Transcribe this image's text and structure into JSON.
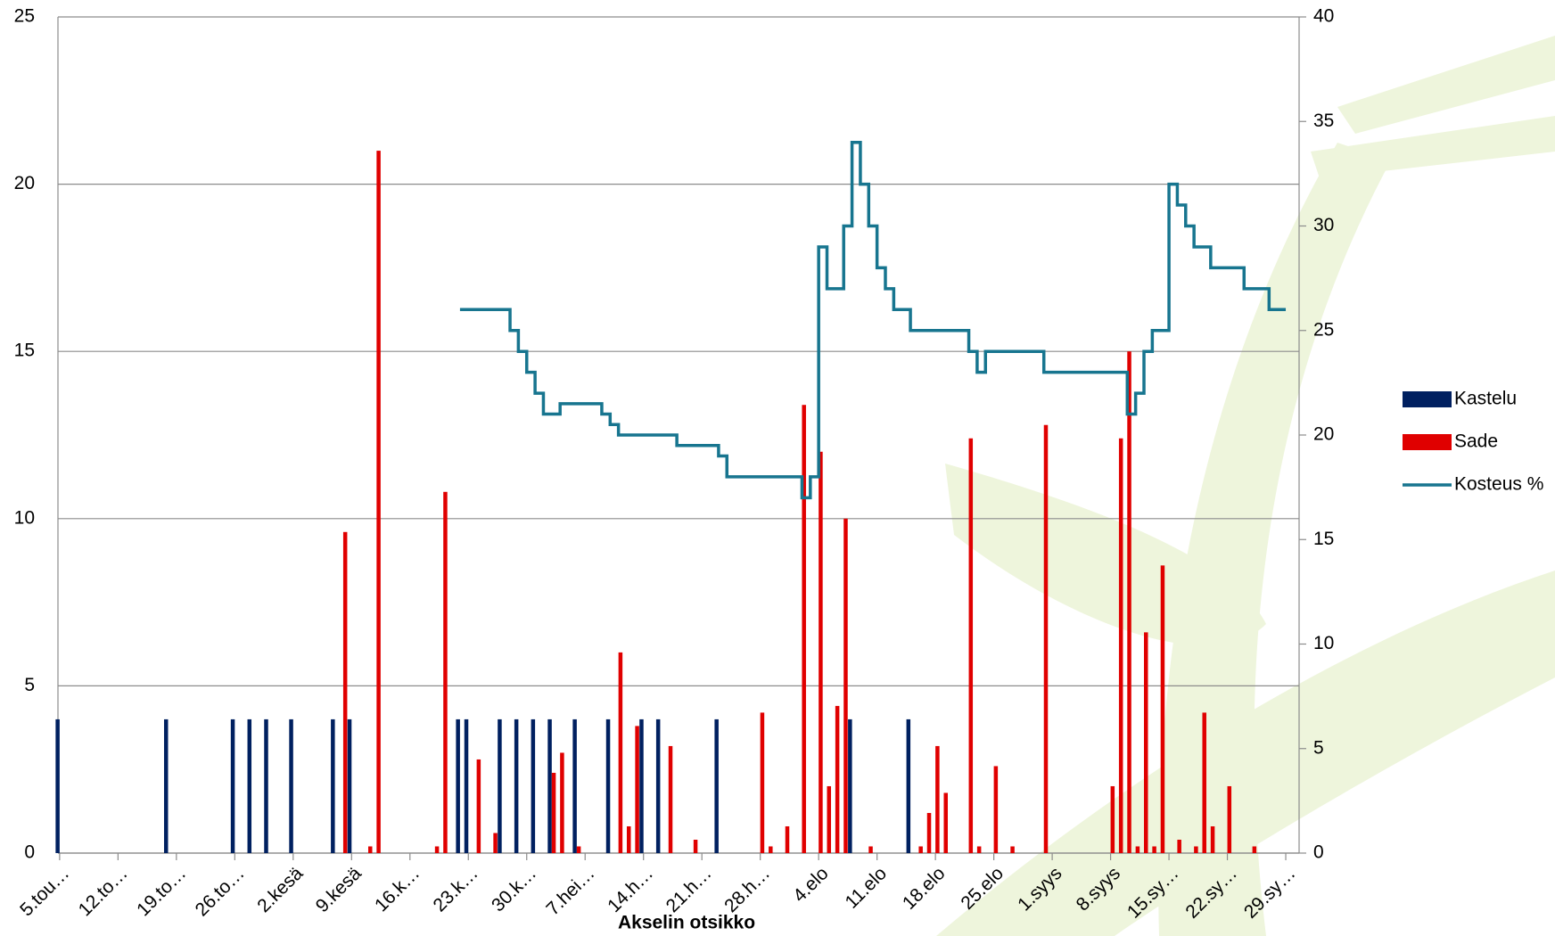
{
  "chart_data": {
    "type": "combo",
    "x_label": "Akselin otsikko",
    "xlim": [
      -0.2,
      148.6
    ],
    "xticks": [
      {
        "value": 0,
        "label": "5.tou…"
      },
      {
        "value": 7,
        "label": "12.to…"
      },
      {
        "value": 14,
        "label": "19.to…"
      },
      {
        "value": 21,
        "label": "26.to…"
      },
      {
        "value": 28,
        "label": "2.kesä"
      },
      {
        "value": 35,
        "label": "9.kesä"
      },
      {
        "value": 42,
        "label": "16.k…"
      },
      {
        "value": 49,
        "label": "23.k…"
      },
      {
        "value": 56,
        "label": "30.k…"
      },
      {
        "value": 63,
        "label": "7.hei…"
      },
      {
        "value": 70,
        "label": "14.h…"
      },
      {
        "value": 77,
        "label": "21.h…"
      },
      {
        "value": 84,
        "label": "28.h…"
      },
      {
        "value": 91,
        "label": "4.elo"
      },
      {
        "value": 98,
        "label": "11.elo"
      },
      {
        "value": 105,
        "label": "18.elo"
      },
      {
        "value": 112,
        "label": "25.elo"
      },
      {
        "value": 119,
        "label": "1.syys"
      },
      {
        "value": 126,
        "label": "8.syys"
      },
      {
        "value": 133,
        "label": "15.sy…"
      },
      {
        "value": 140,
        "label": "22.sy…"
      },
      {
        "value": 147,
        "label": "29.sy…"
      }
    ],
    "ylim": [
      0,
      25
    ],
    "yticks": [
      0,
      5,
      10,
      15,
      20,
      25
    ],
    "y2lim": [
      0,
      40
    ],
    "y2ticks": [
      0,
      5,
      10,
      15,
      20,
      25,
      30,
      35,
      40
    ],
    "grid": true,
    "legend": "right",
    "series": [
      {
        "name": "Kastelu",
        "type": "bar",
        "color": "#002060",
        "x": [
          0,
          13,
          21,
          23,
          25,
          28,
          33,
          35,
          48,
          49,
          53,
          55,
          57,
          59,
          62,
          66,
          70,
          72,
          79,
          95,
          102
        ],
        "values": [
          4,
          4,
          4,
          4,
          4,
          4,
          4,
          4,
          4,
          4,
          4,
          4,
          4,
          4,
          4,
          4,
          4,
          4,
          4,
          4,
          4
        ]
      },
      {
        "name": "Sade",
        "type": "bar",
        "color": "#e00000",
        "x": [
          34,
          37,
          38,
          45,
          46,
          50,
          52,
          59,
          60,
          62,
          67,
          68,
          69,
          73,
          76,
          84,
          85,
          87,
          89,
          91,
          92,
          93,
          94,
          97,
          103,
          104,
          105,
          106,
          109,
          110,
          112,
          114,
          118,
          126,
          127,
          128,
          129,
          130,
          131,
          132,
          134,
          136,
          137,
          138,
          140,
          143
        ],
        "values": [
          9.6,
          0.2,
          21,
          0.2,
          10.8,
          2.8,
          0.6,
          2.4,
          3,
          0.2,
          6,
          0.8,
          3.8,
          3.2,
          0.4,
          4.2,
          0.2,
          0.8,
          13.4,
          12,
          2,
          4.4,
          10,
          0.2,
          0.2,
          1.2,
          3.2,
          1.8,
          12.4,
          0.2,
          2.6,
          0.2,
          12.8,
          2,
          12.4,
          15,
          0.2,
          6.6,
          0.2,
          8.6,
          0.4,
          0.2,
          4.2,
          0.8,
          2,
          0.2
        ]
      },
      {
        "name": "Kosteus %",
        "type": "line",
        "axis": "y2",
        "color": "#17758f",
        "x": [
          48,
          50,
          54,
          55,
          56,
          57,
          58,
          60,
          65,
          66,
          67,
          72,
          74,
          79,
          80,
          88,
          89,
          90,
          91,
          92,
          94,
          95,
          96,
          97,
          98,
          99,
          100,
          102,
          109,
          110,
          111,
          117,
          118,
          126,
          128,
          129,
          130,
          131,
          133,
          134,
          135,
          136,
          138,
          140,
          142,
          145,
          147
        ],
        "values": [
          26,
          26,
          25,
          24,
          23,
          22,
          21,
          21.5,
          21,
          20.5,
          20,
          20,
          19.5,
          19,
          18,
          18,
          17,
          18,
          29,
          27,
          30,
          34,
          32,
          30,
          28,
          27,
          26,
          25,
          24,
          23,
          24,
          24,
          23,
          23,
          21,
          22,
          24,
          25,
          32,
          31,
          30,
          29,
          28,
          28,
          27,
          26,
          26
        ]
      }
    ]
  }
}
